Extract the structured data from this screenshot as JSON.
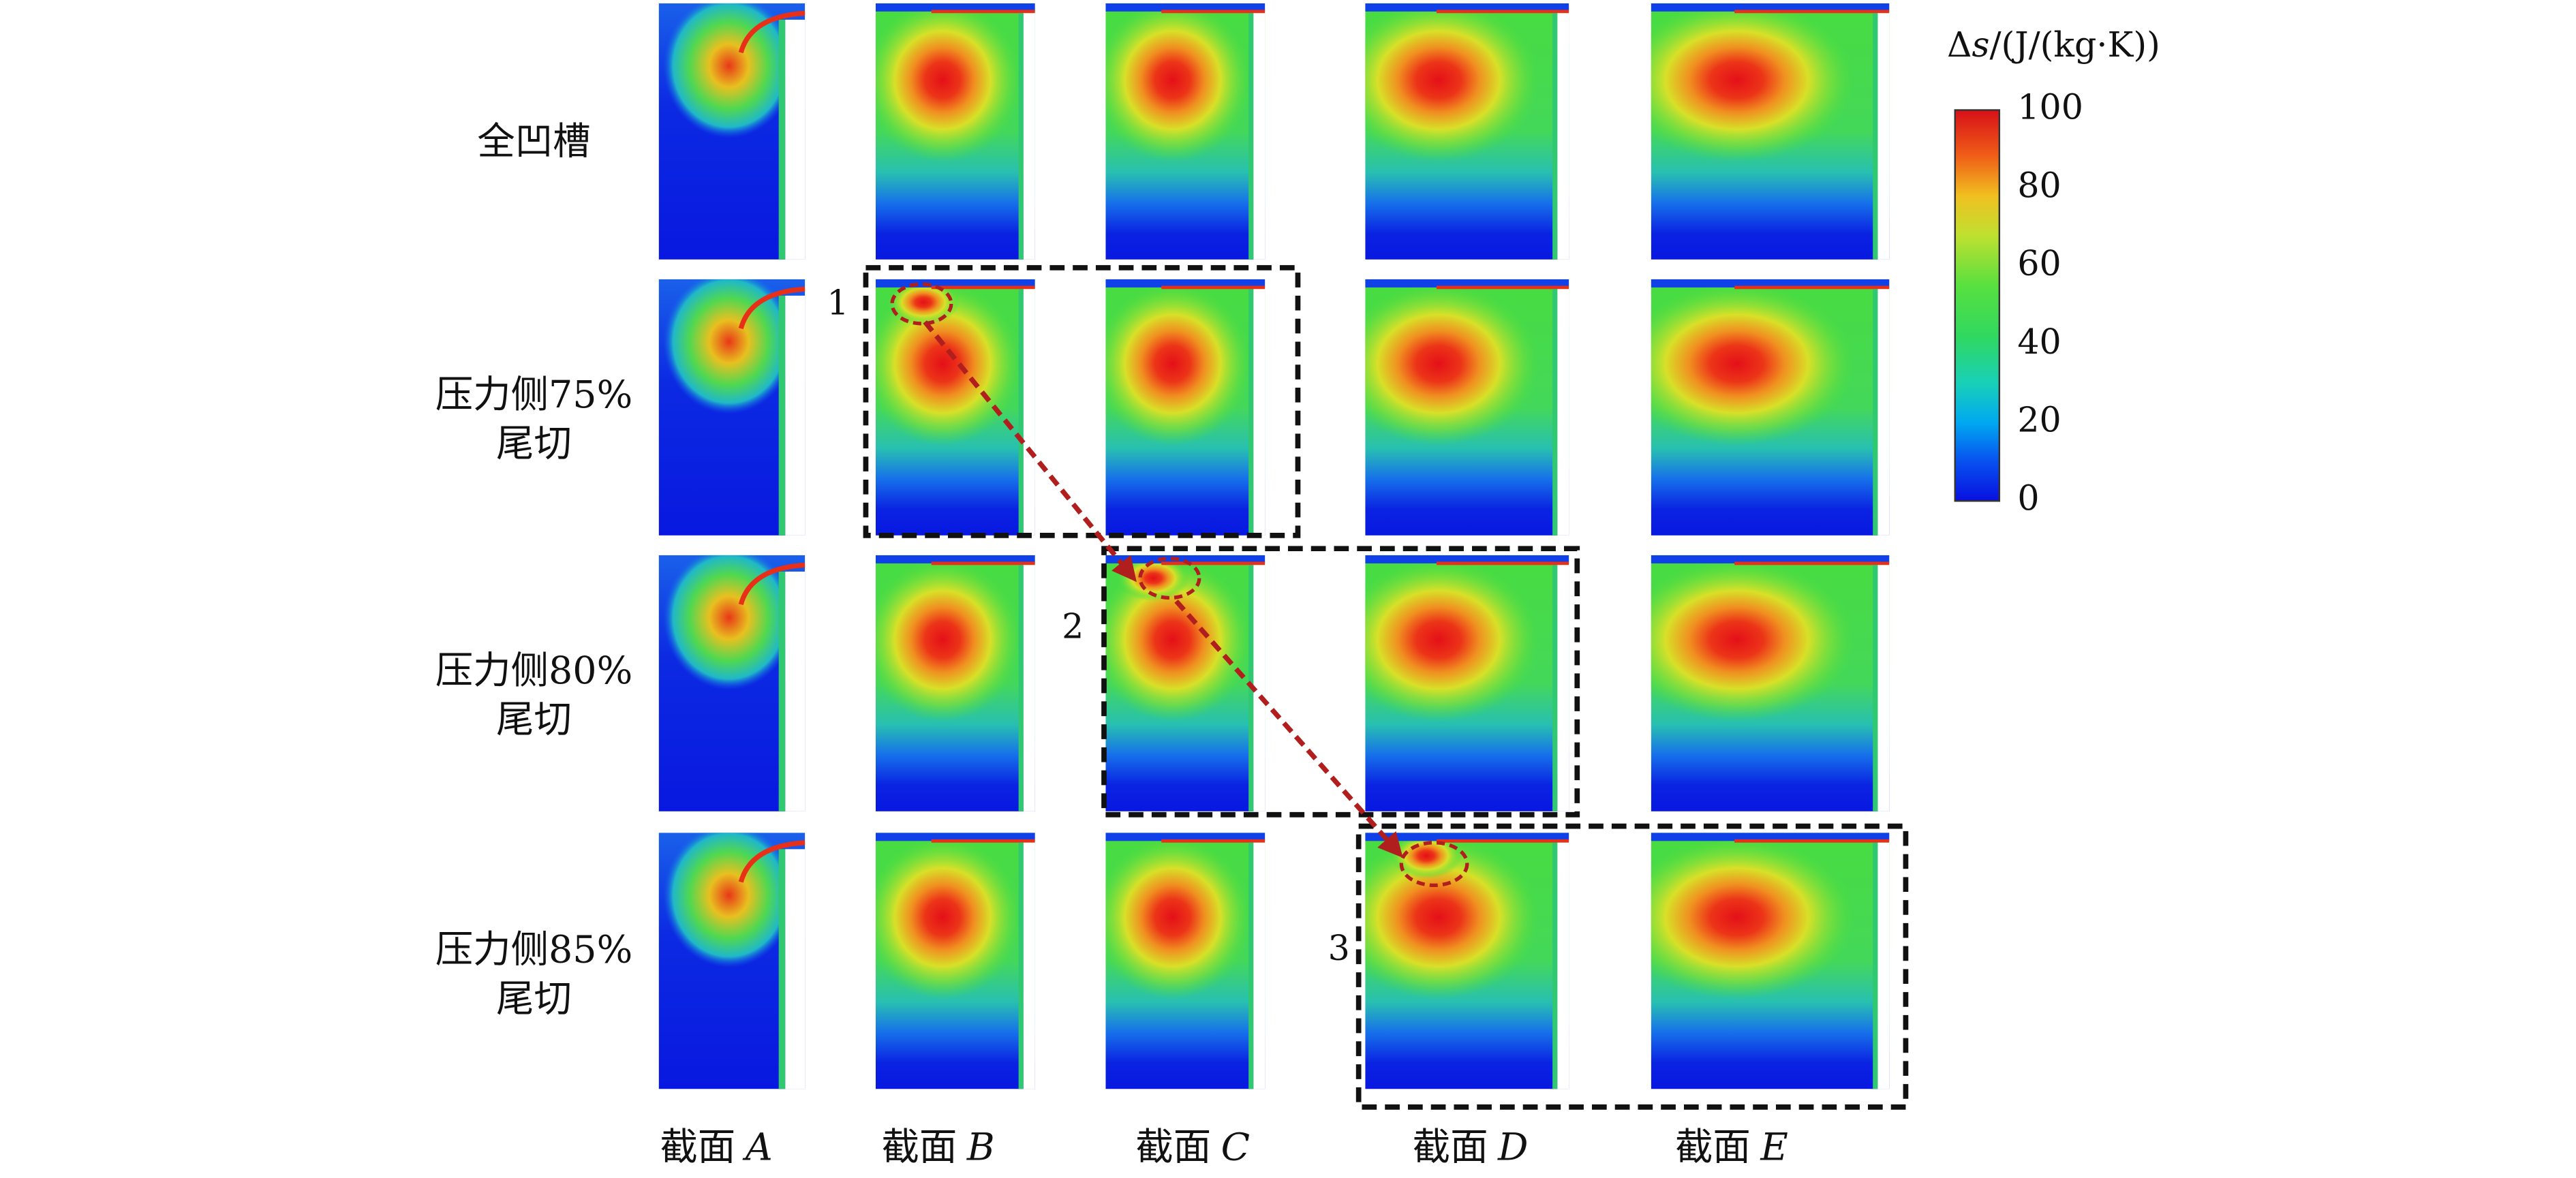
{
  "row_labels": [
    [
      "全凹槽"
    ],
    [
      "压力侧75%",
      "尾切"
    ],
    [
      "压力侧80%",
      "尾切"
    ],
    [
      "压力侧85%",
      "尾切"
    ]
  ],
  "column_labels": [
    {
      "prefix": "截面",
      "variable": "A"
    },
    {
      "prefix": "截面",
      "variable": "B"
    },
    {
      "prefix": "截面",
      "variable": "C"
    },
    {
      "prefix": "截面",
      "variable": "D"
    },
    {
      "prefix": "截面",
      "variable": "E"
    }
  ],
  "colorbar": {
    "title": {
      "symbol_prefix": "Δ",
      "symbol": "s",
      "unit": "/(J/(kg·K))"
    },
    "ticks": [
      100,
      80,
      60,
      40,
      20,
      0
    ]
  },
  "highlight_boxes": [
    {
      "label": "1"
    },
    {
      "label": "2"
    },
    {
      "label": "3"
    }
  ]
}
